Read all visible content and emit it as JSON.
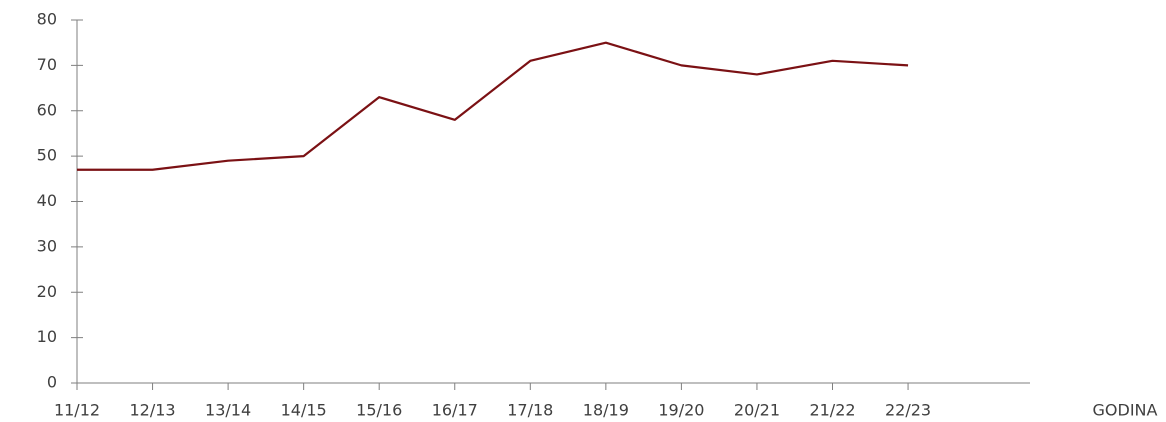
{
  "chart_data": {
    "type": "line",
    "xlabel": "GODINA",
    "categories": [
      "11/12",
      "12/13",
      "13/14",
      "14/15",
      "15/16",
      "16/17",
      "17/18",
      "18/19",
      "19/20",
      "20/21",
      "21/22",
      "22/23"
    ],
    "series": [
      {
        "name": null,
        "color": "#7b1114",
        "values": [
          47,
          47,
          49,
          50,
          63,
          58,
          71,
          75,
          70,
          68,
          71,
          70
        ]
      }
    ],
    "ylim": [
      0,
      80
    ],
    "yticks": [
      0,
      10,
      20,
      30,
      40,
      50,
      60,
      70,
      80
    ],
    "grid": false
  }
}
